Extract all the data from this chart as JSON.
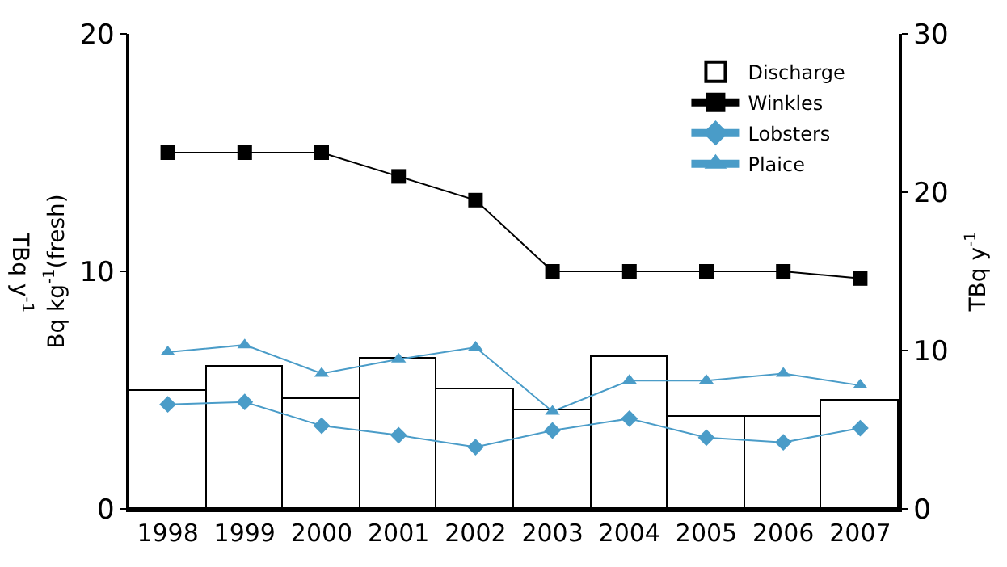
{
  "chart_data": {
    "type": "line",
    "categories": [
      "1998",
      "1999",
      "2000",
      "2001",
      "2002",
      "2003",
      "2004",
      "2005",
      "2006",
      "2007"
    ],
    "series": [
      {
        "name": "Discharge",
        "type": "bar",
        "axis": "y2",
        "color": "#ffffff",
        "values": [
          7.5,
          9.0,
          6.9,
          9.5,
          7.6,
          6.2,
          9.6,
          5.8,
          5.8,
          6.8
        ]
      },
      {
        "name": "Winkles",
        "color": "#000000",
        "marker": "square",
        "values": [
          15,
          15,
          15,
          14,
          13,
          10,
          10,
          10,
          10,
          9.7
        ]
      },
      {
        "name": "Lobsters",
        "color": "#4a9cc8",
        "marker": "diamond",
        "values": [
          4.4,
          4.5,
          3.5,
          3.1,
          2.6,
          3.3,
          3.8,
          3.0,
          2.8,
          3.4
        ]
      },
      {
        "name": "Plaice",
        "color": "#4a9cc8",
        "marker": "triangle",
        "values": [
          6.6,
          6.9,
          5.7,
          6.3,
          6.8,
          4.1,
          5.4,
          5.4,
          5.7,
          5.2
        ]
      }
    ],
    "ylabel": "Bq kg$^{-1}$(fresh)",
    "y2label": "TBq y$^{-1}$",
    "annotations": [
      "TBq y$^{-1}$"
    ],
    "ylim": [
      0,
      20
    ],
    "yticks": [
      0,
      10,
      20
    ],
    "y2lim": [
      0,
      30
    ],
    "y2ticks": [
      0,
      10,
      20,
      30
    ],
    "legend": "top right"
  }
}
